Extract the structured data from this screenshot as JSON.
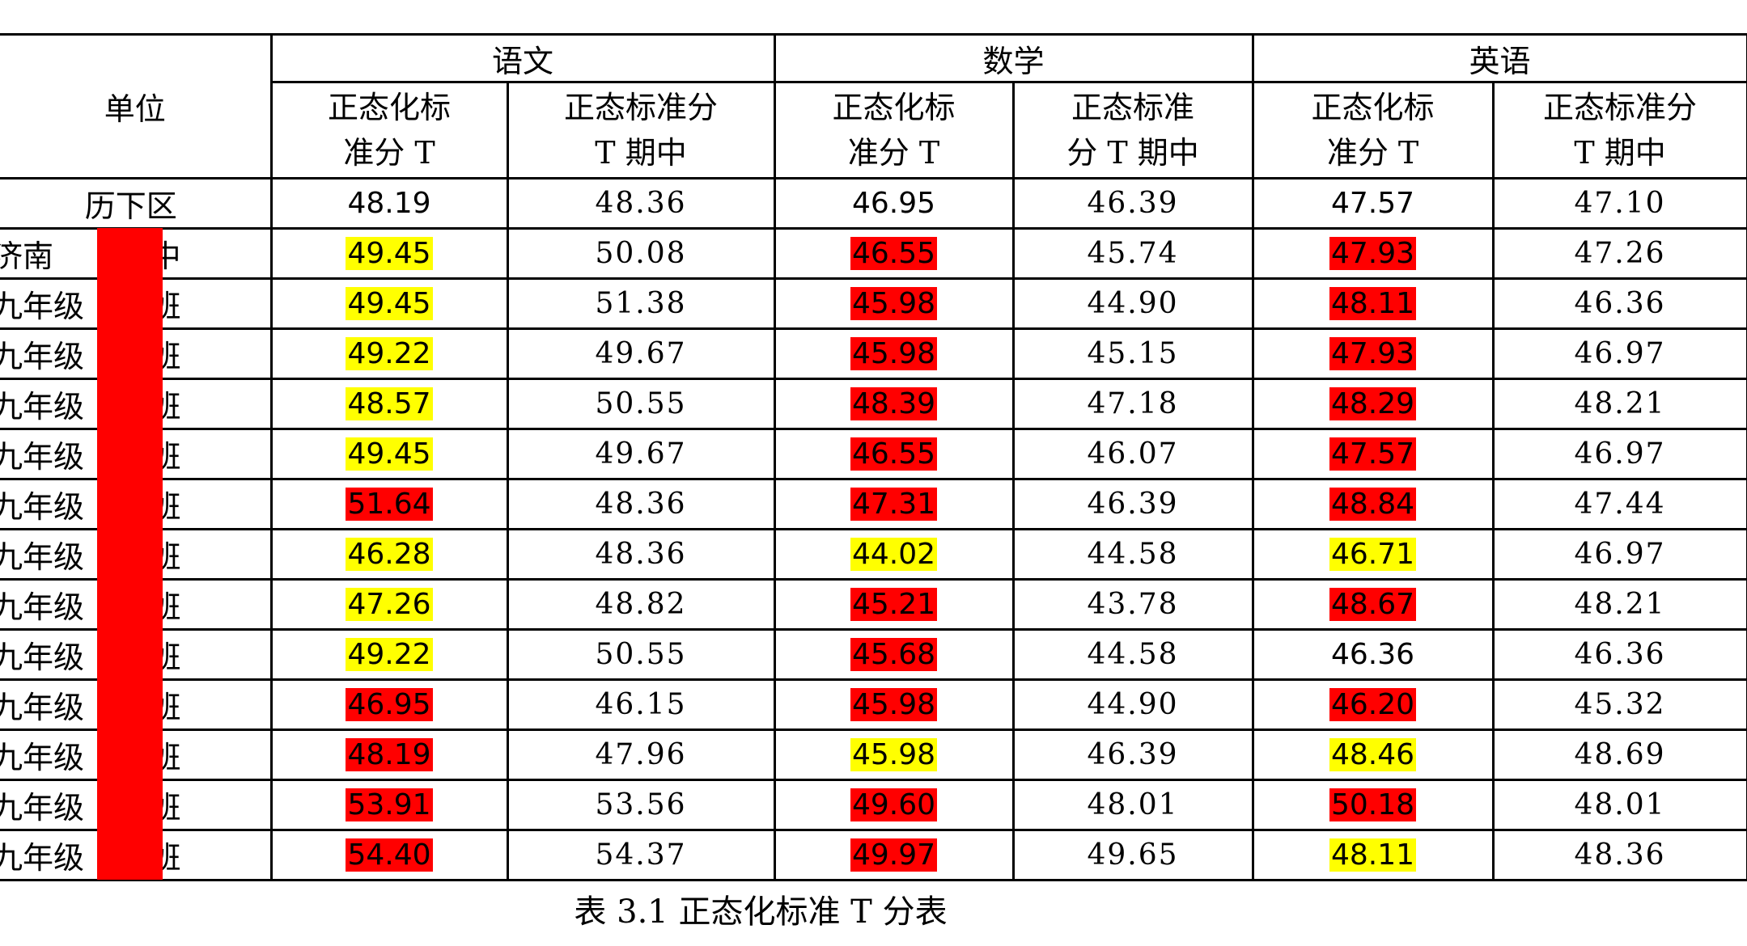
{
  "table": {
    "header": {
      "unit": "单位",
      "subjects": [
        "语文",
        "数学",
        "英语"
      ],
      "sub": [
        "正态化标\n准分 T",
        "正态标准分\nT 期中",
        "正态化标\n准分 T",
        "正态标准\n分 T 期中",
        "正态化标\n准分 T",
        "正态标准分\nT 期中"
      ]
    },
    "rows": [
      {
        "unit": [
          "历下区",
          ""
        ],
        "cells": [
          "48.19",
          "48.36",
          "46.95",
          "46.39",
          "47.57",
          "47.10"
        ],
        "highlight": [
          null,
          null,
          null
        ]
      },
      {
        "unit": [
          "济南",
          "中"
        ],
        "cells": [
          "49.45",
          "50.08",
          "46.55",
          "45.74",
          "47.93",
          "47.26"
        ],
        "highlight": [
          "#ffff00",
          "#ff0000",
          "#ff0000"
        ]
      },
      {
        "unit": [
          "九年级",
          "班"
        ],
        "cells": [
          "49.45",
          "51.38",
          "45.98",
          "44.90",
          "48.11",
          "46.36"
        ],
        "highlight": [
          "#ffff00",
          "#ff0000",
          "#ff0000"
        ]
      },
      {
        "unit": [
          "九年级",
          "班"
        ],
        "cells": [
          "49.22",
          "49.67",
          "45.98",
          "45.15",
          "47.93",
          "46.97"
        ],
        "highlight": [
          "#ffff00",
          "#ff0000",
          "#ff0000"
        ]
      },
      {
        "unit": [
          "九年级",
          "班"
        ],
        "cells": [
          "48.57",
          "50.55",
          "48.39",
          "47.18",
          "48.29",
          "48.21"
        ],
        "highlight": [
          "#ffff00",
          "#ff0000",
          "#ff0000"
        ]
      },
      {
        "unit": [
          "九年级",
          "班"
        ],
        "cells": [
          "49.45",
          "49.67",
          "46.55",
          "46.07",
          "47.57",
          "46.97"
        ],
        "highlight": [
          "#ffff00",
          "#ff0000",
          "#ff0000"
        ]
      },
      {
        "unit": [
          "九年级",
          "班"
        ],
        "cells": [
          "51.64",
          "48.36",
          "47.31",
          "46.39",
          "48.84",
          "47.44"
        ],
        "highlight": [
          "#ff0000",
          "#ff0000",
          "#ff0000"
        ]
      },
      {
        "unit": [
          "九年级",
          "班"
        ],
        "cells": [
          "46.28",
          "48.36",
          "44.02",
          "44.58",
          "46.71",
          "46.97"
        ],
        "highlight": [
          "#ffff00",
          "#ffff00",
          "#ffff00"
        ]
      },
      {
        "unit": [
          "九年级",
          "班"
        ],
        "cells": [
          "47.26",
          "48.82",
          "45.21",
          "43.78",
          "48.67",
          "48.21"
        ],
        "highlight": [
          "#ffff00",
          "#ff0000",
          "#ff0000"
        ]
      },
      {
        "unit": [
          "九年级",
          "班"
        ],
        "cells": [
          "49.22",
          "50.55",
          "45.68",
          "44.58",
          "46.36",
          "46.36"
        ],
        "highlight": [
          "#ffff00",
          "#ff0000",
          null
        ]
      },
      {
        "unit": [
          "九年级",
          "班"
        ],
        "cells": [
          "46.95",
          "46.15",
          "45.98",
          "44.90",
          "46.20",
          "45.32"
        ],
        "highlight": [
          "#ff0000",
          "#ff0000",
          "#ff0000"
        ]
      },
      {
        "unit": [
          "九年级",
          "班"
        ],
        "cells": [
          "48.19",
          "47.96",
          "45.98",
          "46.39",
          "48.46",
          "48.69"
        ],
        "highlight": [
          "#ff0000",
          "#ffff00",
          "#ffff00"
        ]
      },
      {
        "unit": [
          "九年级",
          "班"
        ],
        "cells": [
          "53.91",
          "53.56",
          "49.60",
          "48.01",
          "50.18",
          "48.01"
        ],
        "highlight": [
          "#ff0000",
          "#ff0000",
          "#ff0000"
        ]
      },
      {
        "unit": [
          "九年级",
          "班"
        ],
        "cells": [
          "54.40",
          "54.37",
          "49.97",
          "49.65",
          "48.11",
          "48.36"
        ],
        "highlight": [
          "#ff0000",
          "#ff0000",
          "#ffff00"
        ]
      }
    ]
  },
  "caption": "表 3.1 正态化标准 T 分表"
}
